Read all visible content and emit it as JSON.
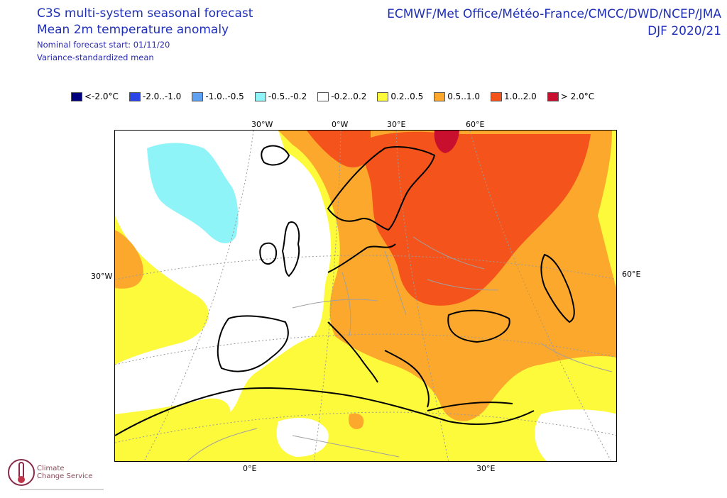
{
  "header": {
    "title": "C3S multi-system seasonal forecast",
    "subtitle": "Mean 2m temperature anomaly",
    "start": "Nominal forecast start: 01/11/20",
    "method": "Variance-standardized mean",
    "centres": "ECMWF/Met Office/Météo-France/CMCC/DWD/NCEP/JMA",
    "season": "DJF 2020/21"
  },
  "legend": [
    {
      "label": "<-2.0°C",
      "color": "#00007f"
    },
    {
      "label": "-2.0..-1.0",
      "color": "#2a46e6"
    },
    {
      "label": "-1.0..-0.5",
      "color": "#5fa0f0"
    },
    {
      "label": "-0.5..-0.2",
      "color": "#8ff4f8"
    },
    {
      "label": "-0.2..0.2",
      "color": "#ffffff"
    },
    {
      "label": "0.2..0.5",
      "color": "#fdfa3c"
    },
    {
      "label": "0.5..1.0",
      "color": "#fca82c"
    },
    {
      "label": "1.0..2.0",
      "color": "#f4541c"
    },
    {
      "label": "> 2.0°C",
      "color": "#c8102e"
    }
  ],
  "axis": {
    "top": [
      "30°W",
      "0°W",
      "30°E",
      "60°E"
    ],
    "left": "30°W",
    "right": "60°E",
    "bottom": [
      "0°E",
      "30°E"
    ]
  },
  "logo": {
    "line1": "Climate",
    "line2": "Change Service"
  }
}
